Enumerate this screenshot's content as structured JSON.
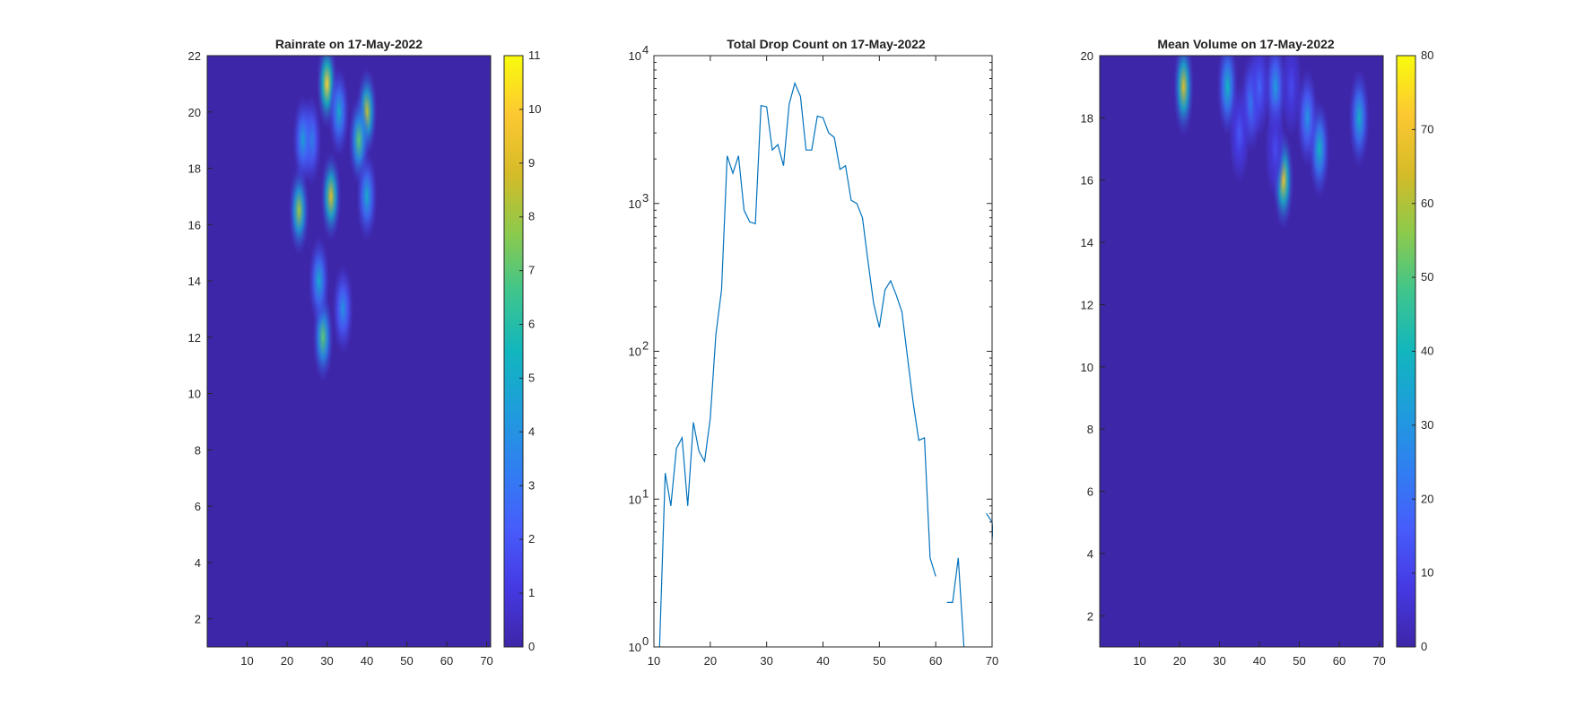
{
  "colors": {
    "background": "#ffffff",
    "parula_min": "#3e26a8",
    "parula_max": "#f9fb0e",
    "line": "#0072bd",
    "axis": "#262626"
  },
  "chart_data": [
    {
      "type": "heatmap",
      "title": "Rainrate on 17-May-2022",
      "xlabel": "",
      "ylabel": "",
      "xlim": [
        0,
        71
      ],
      "ylim": [
        1,
        22
      ],
      "xticks": [
        "10",
        "20",
        "30",
        "40",
        "50",
        "60",
        "70"
      ],
      "yticks": [
        "2",
        "4",
        "6",
        "8",
        "10",
        "12",
        "14",
        "16",
        "18",
        "20",
        "22"
      ],
      "colorbar": {
        "range": [
          0,
          11
        ],
        "ticks": [
          "0",
          "1",
          "2",
          "3",
          "4",
          "5",
          "6",
          "7",
          "8",
          "9",
          "10",
          "11"
        ]
      },
      "hotspots": [
        {
          "x": 30,
          "y": 21,
          "value": 10
        },
        {
          "x": 31,
          "y": 17,
          "value": 9
        },
        {
          "x": 23,
          "y": 16.5,
          "value": 8
        },
        {
          "x": 40,
          "y": 20,
          "value": 8.5
        },
        {
          "x": 38,
          "y": 19,
          "value": 7
        },
        {
          "x": 29,
          "y": 12,
          "value": 7
        },
        {
          "x": 40,
          "y": 17,
          "value": 5
        },
        {
          "x": 33,
          "y": 20,
          "value": 5
        },
        {
          "x": 28,
          "y": 14,
          "value": 5
        },
        {
          "x": 34,
          "y": 13,
          "value": 4
        },
        {
          "x": 26,
          "y": 19,
          "value": 4
        },
        {
          "x": 24,
          "y": 19,
          "value": 4.5
        }
      ]
    },
    {
      "type": "line",
      "title": "Total Drop Count on 17-May-2022",
      "xlabel": "",
      "ylabel": "",
      "xlim": [
        10,
        70
      ],
      "ylim": [
        1,
        10000
      ],
      "yscale": "log",
      "xticks": [
        "10",
        "20",
        "30",
        "40",
        "50",
        "60",
        "70"
      ],
      "yticks": [
        {
          "base": "10",
          "exp": "0"
        },
        {
          "base": "10",
          "exp": "1"
        },
        {
          "base": "10",
          "exp": "2"
        },
        {
          "base": "10",
          "exp": "3"
        },
        {
          "base": "10",
          "exp": "4"
        }
      ],
      "series": [
        {
          "segments": [
            [
              [
                11,
                1
              ],
              [
                12,
                15
              ],
              [
                13,
                9
              ],
              [
                14,
                22
              ],
              [
                15,
                26
              ],
              [
                16,
                9
              ],
              [
                17,
                33
              ],
              [
                18,
                21
              ],
              [
                19,
                18
              ],
              [
                20,
                35
              ],
              [
                21,
                130
              ],
              [
                22,
                260
              ],
              [
                23,
                2100
              ],
              [
                24,
                1600
              ],
              [
                25,
                2100
              ],
              [
                26,
                900
              ],
              [
                27,
                750
              ],
              [
                28,
                730
              ],
              [
                29,
                4600
              ],
              [
                30,
                4500
              ],
              [
                31,
                2300
              ],
              [
                32,
                2500
              ],
              [
                33,
                1800
              ],
              [
                34,
                4700
              ],
              [
                35,
                6500
              ],
              [
                36,
                5300
              ],
              [
                37,
                2300
              ],
              [
                38,
                2300
              ],
              [
                39,
                3900
              ],
              [
                40,
                3800
              ],
              [
                41,
                3000
              ],
              [
                42,
                2800
              ],
              [
                43,
                1700
              ],
              [
                44,
                1800
              ],
              [
                45,
                1050
              ],
              [
                46,
                1000
              ],
              [
                47,
                800
              ],
              [
                48,
                400
              ],
              [
                49,
                210
              ],
              [
                50,
                145
              ],
              [
                51,
                260
              ],
              [
                52,
                300
              ],
              [
                53,
                240
              ],
              [
                54,
                185
              ],
              [
                55,
                90
              ],
              [
                56,
                45
              ],
              [
                57,
                25
              ],
              [
                58,
                26
              ],
              [
                59,
                4
              ],
              [
                60,
                3
              ]
            ],
            [
              [
                62,
                2
              ],
              [
                63,
                2
              ],
              [
                64,
                4
              ],
              [
                65,
                1
              ]
            ],
            [
              [
                69,
                8
              ],
              [
                70,
                7
              ],
              [
                70.5,
                4
              ]
            ]
          ]
        }
      ]
    },
    {
      "type": "heatmap",
      "title": "Mean Volume on 17-May-2022",
      "xlabel": "",
      "ylabel": "",
      "xlim": [
        0,
        71
      ],
      "ylim": [
        1,
        20
      ],
      "xticks": [
        "10",
        "20",
        "30",
        "40",
        "50",
        "60",
        "70"
      ],
      "yticks": [
        "2",
        "4",
        "6",
        "8",
        "10",
        "12",
        "14",
        "16",
        "18",
        "20"
      ],
      "colorbar": {
        "range": [
          0,
          80
        ],
        "ticks": [
          "0",
          "10",
          "20",
          "30",
          "40",
          "50",
          "60",
          "70",
          "80"
        ]
      },
      "hotspots": [
        {
          "x": 21,
          "y": 19,
          "value": 65
        },
        {
          "x": 46,
          "y": 16,
          "value": 68
        },
        {
          "x": 32,
          "y": 19,
          "value": 40
        },
        {
          "x": 55,
          "y": 17,
          "value": 40
        },
        {
          "x": 65,
          "y": 18,
          "value": 38
        },
        {
          "x": 52,
          "y": 18,
          "value": 30
        },
        {
          "x": 44,
          "y": 19,
          "value": 32
        },
        {
          "x": 38,
          "y": 18.5,
          "value": 25
        },
        {
          "x": 35,
          "y": 17.5,
          "value": 15
        },
        {
          "x": 44,
          "y": 17,
          "value": 12
        },
        {
          "x": 48,
          "y": 19,
          "value": 12
        },
        {
          "x": 40,
          "y": 19,
          "value": 18
        }
      ]
    }
  ]
}
